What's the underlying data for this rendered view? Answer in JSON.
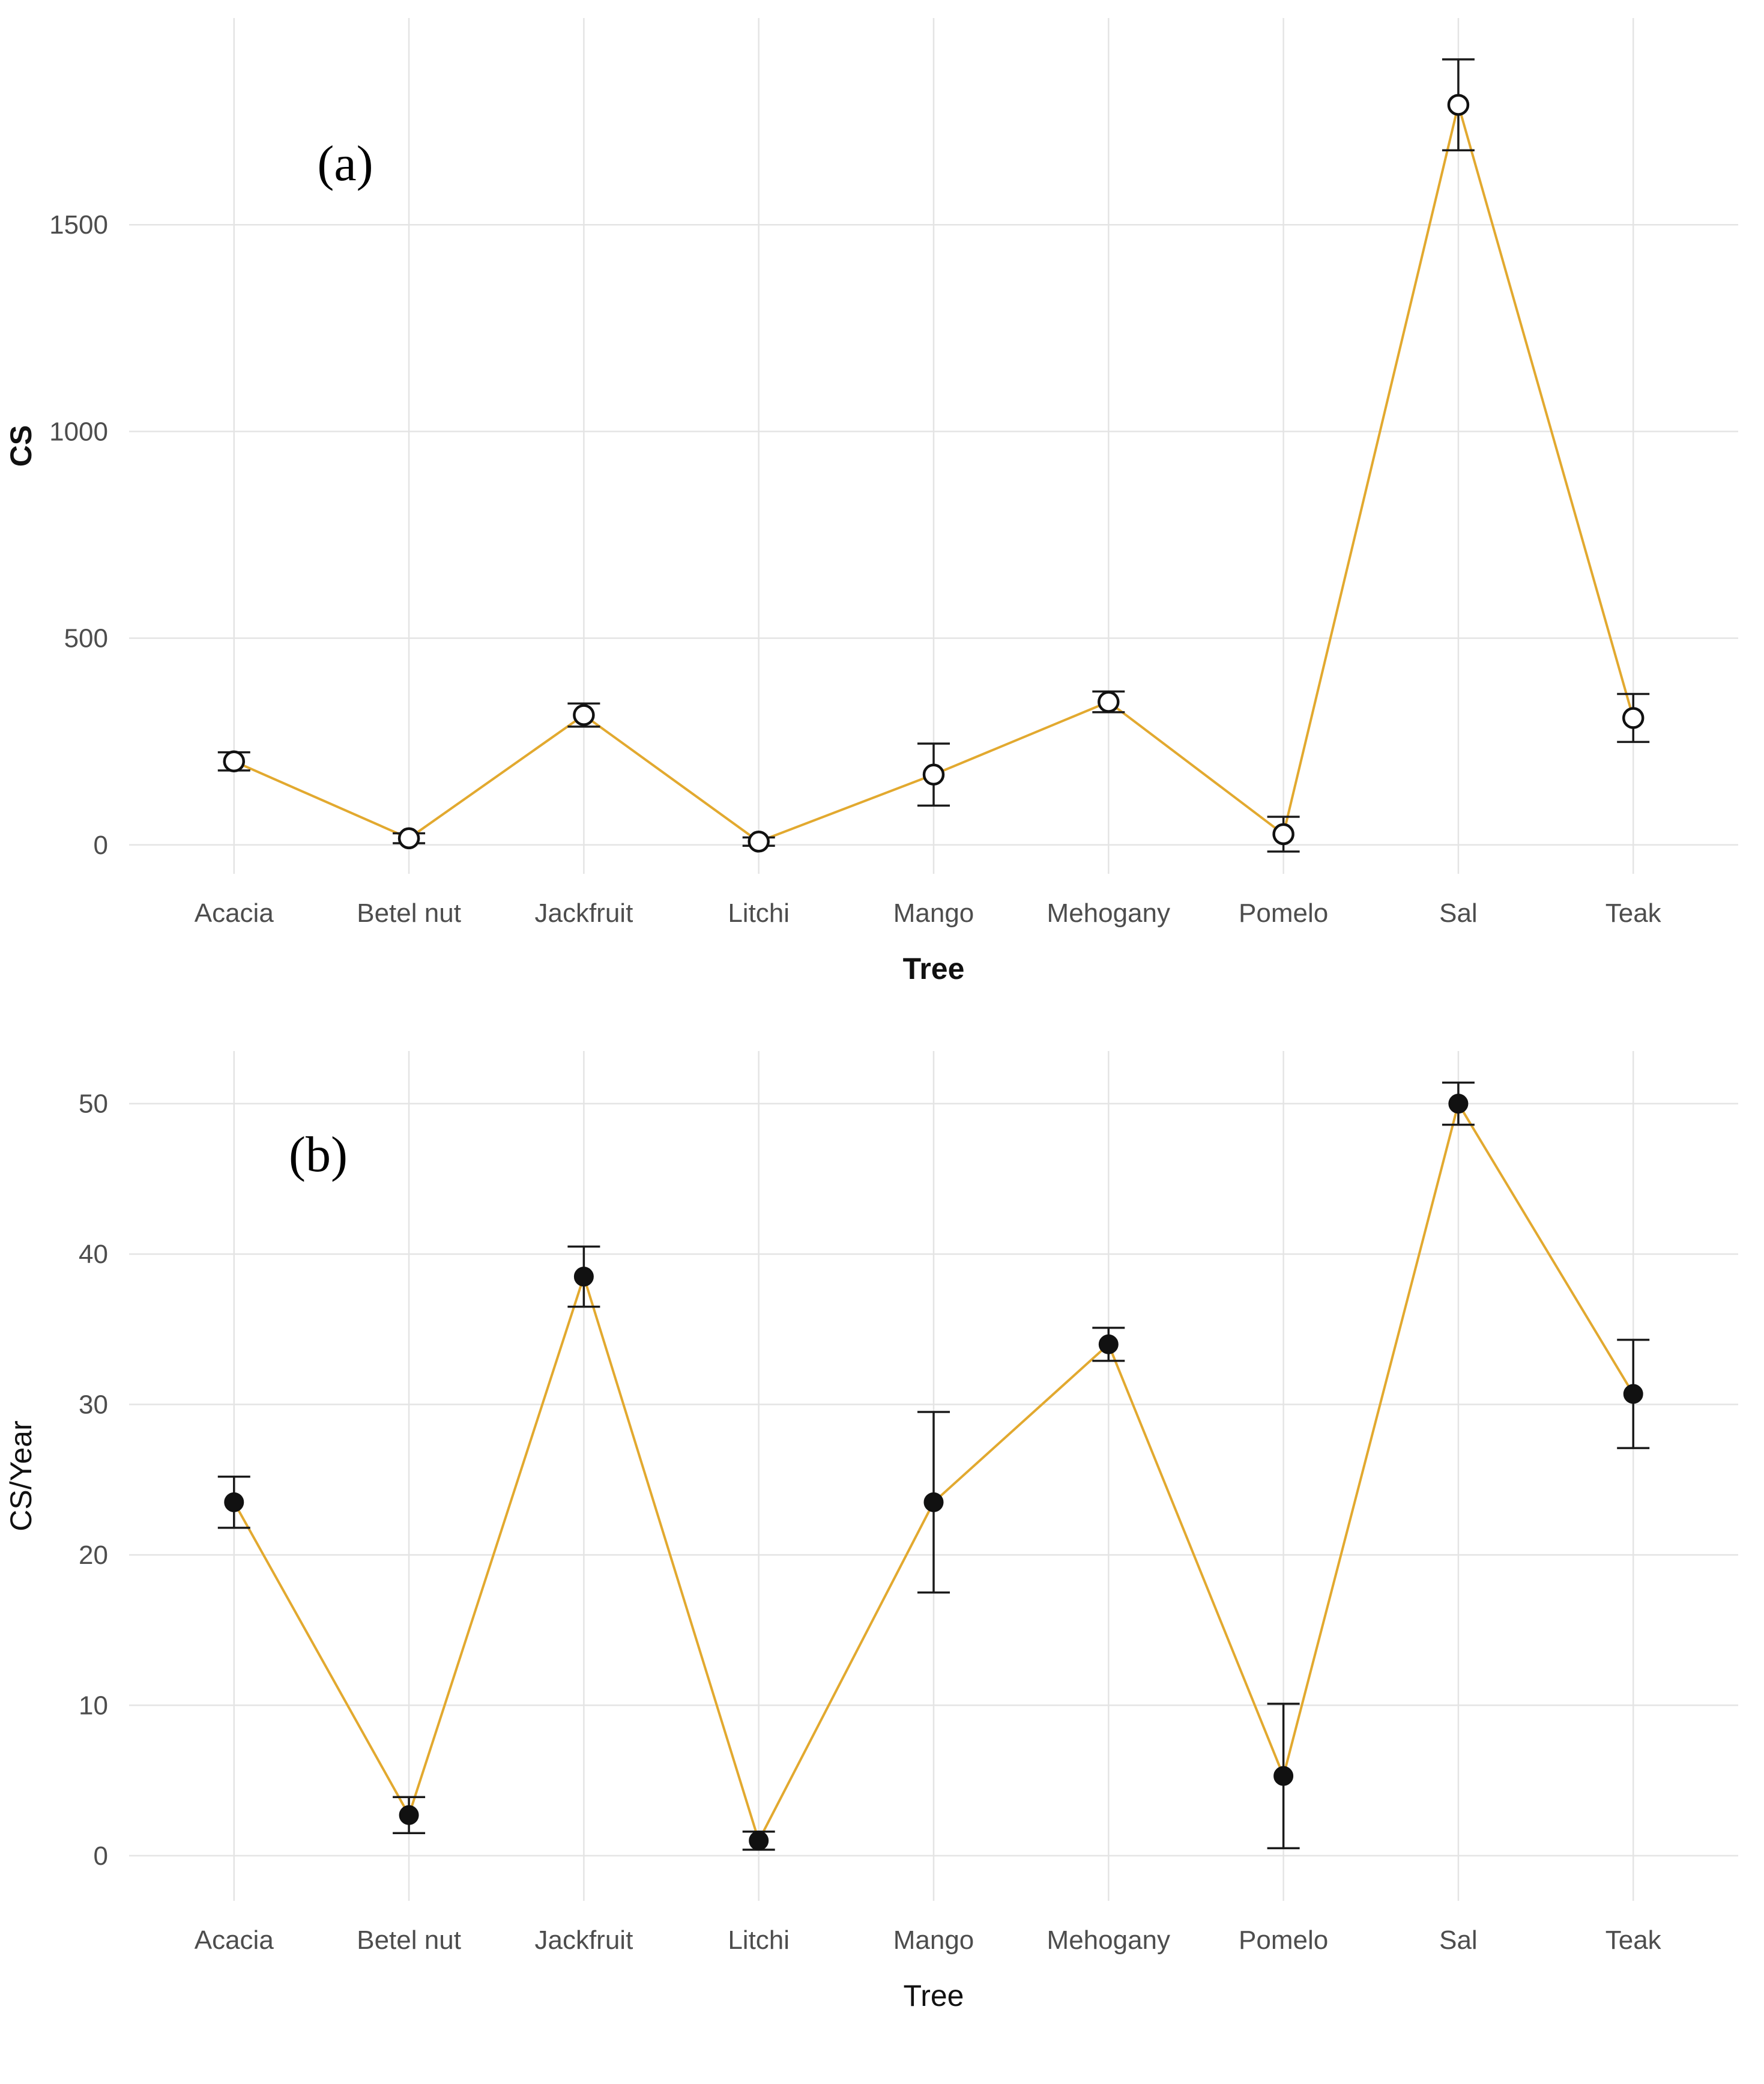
{
  "page": {
    "background": "#ffffff"
  },
  "chart_data": [
    {
      "type": "line",
      "panel_label": "(a)",
      "xlabel": "Tree",
      "ylabel": "CS",
      "categories": [
        "Acacia",
        "Betel nut",
        "Jackfruit",
        "Litchi",
        "Mango",
        "Mehogany",
        "Pomelo",
        "Sal",
        "Teak"
      ],
      "values": [
        202,
        16,
        314,
        8,
        170,
        346,
        26,
        1790,
        307
      ],
      "errors": [
        22,
        12,
        28,
        10,
        75,
        25,
        42,
        110,
        58
      ],
      "yticks": [
        0,
        500,
        1000,
        1500
      ],
      "ylim": [
        -70,
        2000
      ],
      "point_style": "open",
      "axis_title_bold": true,
      "grid": "major",
      "legend": "none",
      "colors": {
        "line": "#E2A92F",
        "point": "#111111",
        "point_fill_open": "#ffffff",
        "error_bar": "#1a1a1a",
        "grid": "#E4E4E4",
        "tick_text": "#4d4d4d",
        "axis_text": "#111111"
      }
    },
    {
      "type": "line",
      "panel_label": "(b)",
      "xlabel": "Tree",
      "ylabel": "CS/Year",
      "categories": [
        "Acacia",
        "Betel nut",
        "Jackfruit",
        "Litchi",
        "Mango",
        "Mehogany",
        "Pomelo",
        "Sal",
        "Teak"
      ],
      "values": [
        23.5,
        2.7,
        38.5,
        1.0,
        23.5,
        34.0,
        5.3,
        50.0,
        30.7
      ],
      "errors": [
        1.7,
        1.2,
        2.0,
        0.6,
        6.0,
        1.1,
        4.8,
        1.4,
        3.6
      ],
      "yticks": [
        0,
        10,
        20,
        30,
        40,
        50
      ],
      "ylim": [
        -3,
        53.5
      ],
      "point_style": "filled",
      "axis_title_bold": false,
      "grid": "major",
      "legend": "none",
      "colors": {
        "line": "#E2A92F",
        "point": "#111111",
        "point_fill_open": "#ffffff",
        "error_bar": "#1a1a1a",
        "grid": "#E4E4E4",
        "tick_text": "#4d4d4d",
        "axis_text": "#111111"
      }
    }
  ]
}
